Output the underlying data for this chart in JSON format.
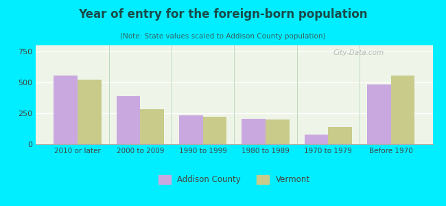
{
  "title": "Year of entry for the foreign-born population",
  "subtitle": "(Note: State values scaled to Addison County population)",
  "categories": [
    "2010 or later",
    "2000 to 2009",
    "1990 to 1999",
    "1980 to 1989",
    "1970 to 1979",
    "Before 1970"
  ],
  "addison_values": [
    555,
    390,
    235,
    205,
    80,
    485
  ],
  "vermont_values": [
    520,
    285,
    220,
    200,
    140,
    555
  ],
  "addison_color": "#c9a8e0",
  "vermont_color": "#c8cb8a",
  "background_outer": "#00eeff",
  "background_inner": "#eef5e8",
  "ylim": [
    0,
    800
  ],
  "yticks": [
    0,
    250,
    500,
    750
  ],
  "bar_width": 0.38,
  "title_color": "#1a4a4a",
  "subtitle_color": "#336666",
  "legend_labels": [
    "Addison County",
    "Vermont"
  ],
  "tick_label_color": "#444444"
}
